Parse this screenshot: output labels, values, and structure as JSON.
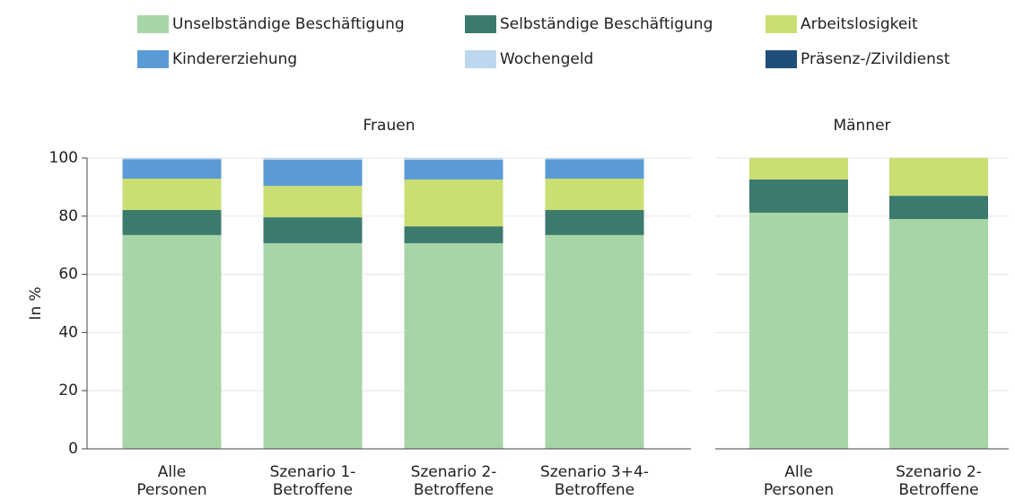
{
  "chart_data": [
    {
      "type": "bar",
      "stacked": true,
      "title": "Frauen",
      "ylabel": "In %",
      "categories": [
        "Alle\nPersonen",
        "Szenario 1-\nBetroffene",
        "Szenario 2-\nBetroffene",
        "Szenario 3+4-\nBetroffene"
      ],
      "series": [
        {
          "name": "Unselbständige Beschäftigung",
          "color": "#a8d5a8",
          "values": [
            73.5,
            70.7,
            70.7,
            73.5
          ]
        },
        {
          "name": "Selbständige Beschäftigung",
          "color": "#3d7a6e",
          "values": [
            8.6,
            8.9,
            5.8,
            8.6
          ]
        },
        {
          "name": "Arbeitslosigkeit",
          "color": "#c9df73",
          "values": [
            10.8,
            10.8,
            16.1,
            10.8
          ]
        },
        {
          "name": "Kindererziehung",
          "color": "#5b9bd5",
          "values": [
            6.7,
            9.0,
            6.8,
            6.7
          ]
        },
        {
          "name": "Wochengeld",
          "color": "#bdd7ee",
          "values": [
            0.4,
            0.6,
            0.6,
            0.4
          ]
        },
        {
          "name": "Präsenz-/Zivildienst",
          "color": "#1f4e79",
          "values": [
            0,
            0,
            0,
            0
          ]
        }
      ],
      "ylim": [
        0,
        100
      ],
      "yticks": [
        0,
        20,
        40,
        60,
        80,
        100
      ],
      "grid": true
    },
    {
      "type": "bar",
      "stacked": true,
      "title": "Männer",
      "categories": [
        "Alle\nPersonen",
        "Szenario 2-\nBetroffene"
      ],
      "series": [
        {
          "name": "Unselbständige Beschäftigung",
          "color": "#a8d5a8",
          "values": [
            81.2,
            79.0
          ]
        },
        {
          "name": "Selbständige Beschäftigung",
          "color": "#3d7a6e",
          "values": [
            11.4,
            8.0
          ]
        },
        {
          "name": "Arbeitslosigkeit",
          "color": "#c9df73",
          "values": [
            7.4,
            13.0
          ]
        }
      ],
      "ylim": [
        0,
        100
      ],
      "yticks": [
        0,
        20,
        40,
        60,
        80,
        100
      ],
      "grid": true
    }
  ]
}
